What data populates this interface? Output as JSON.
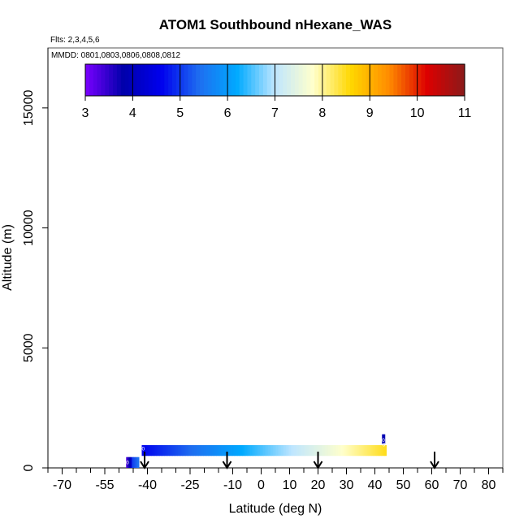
{
  "chart_data": {
    "type": "scatter",
    "title": "ATOM1 Southbound nHexane_WAS",
    "flights_label": "Flts: 2,3,4,5,6",
    "dates_label": "MMDD: 0801,0803,0806,0808,0812",
    "xlabel": "Latitude (deg N)",
    "ylabel": "Altitude (m)",
    "xlim": [
      -75,
      85
    ],
    "ylim": [
      0,
      17500
    ],
    "x_ticks": [
      -70,
      -55,
      -40,
      -25,
      -10,
      0,
      10,
      20,
      30,
      40,
      50,
      60,
      70,
      80
    ],
    "x_tick_labels": [
      "-70",
      "-55",
      "-40",
      "-25",
      "-10",
      "0",
      "10",
      "20",
      "30",
      "40",
      "50",
      "60",
      "70",
      "80"
    ],
    "y_ticks": [
      0,
      5000,
      10000,
      15000
    ],
    "y_tick_labels": [
      "0",
      "5000",
      "10000",
      "15000"
    ],
    "colorbar": {
      "min": 3,
      "max": 11,
      "tick_labels": [
        "3",
        "4",
        "5",
        "6",
        "7",
        "8",
        "9",
        "10",
        "11"
      ],
      "stops": [
        "#7a00ff",
        "#0000aa",
        "#0000ee",
        "#1e6ef0",
        "#00aaff",
        "#bfe6ff",
        "#ffffcc",
        "#ffd700",
        "#ff8c00",
        "#dd0000",
        "#8b1a1a"
      ]
    },
    "segments": [
      {
        "lat_start": -47.5,
        "lat_end": -45.5,
        "alt_low": 0,
        "alt_high": 450,
        "value_start": 3.2,
        "value_end": 4.3
      },
      {
        "lat_start": -45.5,
        "lat_end": -43.0,
        "alt_low": 0,
        "alt_high": 450,
        "value_start": 5.0,
        "value_end": 5.5
      },
      {
        "lat_start": -42.0,
        "lat_end": 44.0,
        "alt_low": 500,
        "alt_high": 950,
        "value_start": 4.6,
        "value_end": 8.5
      },
      {
        "lat_start": 42.5,
        "lat_end": 43.5,
        "alt_low": 1000,
        "alt_high": 1400,
        "value_start": 3.9,
        "value_end": 3.9
      }
    ],
    "markers": [
      {
        "lat": -47.0,
        "alt": 150,
        "label": "0"
      },
      {
        "lat": -41.5,
        "alt": 730,
        "label": "0"
      },
      {
        "lat": 43.2,
        "alt": 900,
        "label": "0"
      },
      {
        "lat": 43.0,
        "alt": 1080,
        "label": "0"
      }
    ],
    "arrows": [
      -41,
      -12,
      20,
      61
    ]
  }
}
